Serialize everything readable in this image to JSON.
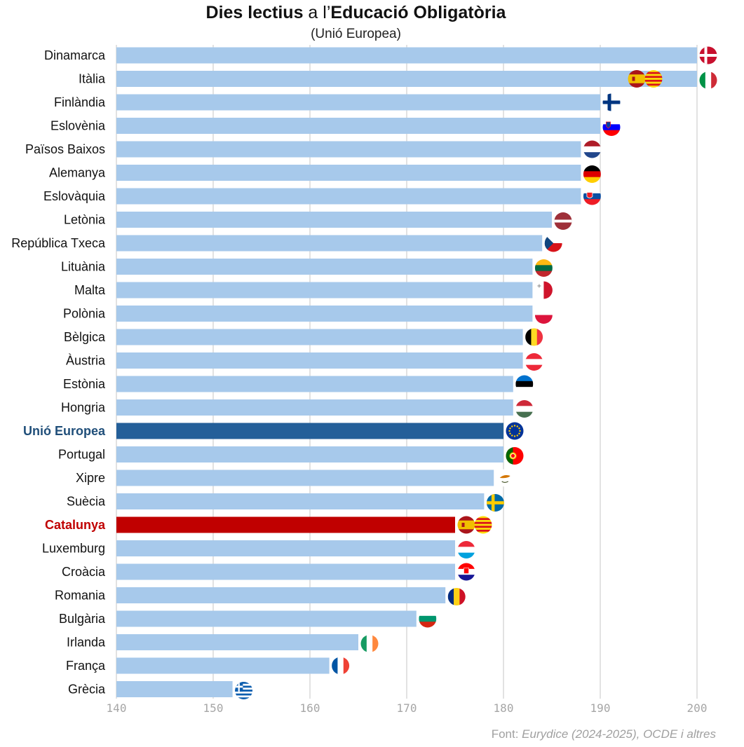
{
  "title": {
    "part1": "Dies lectius",
    "part2": " a l’",
    "part3": "Educació Obligatòria"
  },
  "subtitle": "(Unió Europea)",
  "source": {
    "prefix": "Font: ",
    "text": "Eurydice (2024-2025), OCDE i altres"
  },
  "colors": {
    "default_bar": "#a7c9eb",
    "eu_bar": "#245f99",
    "catalonia_bar": "#c00000",
    "eu_label": "#1f4e79",
    "catalonia_label": "#c00000",
    "grid": "#d9d9d9",
    "tick_label": "#a6a6a6"
  },
  "chart_data": {
    "type": "bar",
    "orientation": "horizontal",
    "xlim": [
      140,
      202
    ],
    "xticks": [
      140,
      150,
      160,
      170,
      180,
      190,
      200
    ],
    "grid": "vertical",
    "categories": [
      "Dinamarca",
      "Itàlia",
      "Finlàndia",
      "Eslovènia",
      "Països Baixos",
      "Alemanya",
      "Eslovàquia",
      "Letònia",
      "República Txeca",
      "Lituània",
      "Malta",
      "Polònia",
      "Bèlgica",
      "Àustria",
      "Estònia",
      "Hongria",
      "Unió Europea",
      "Portugal",
      "Xipre",
      "Suècia",
      "Catalunya",
      "Luxemburg",
      "Croàcia",
      "Romania",
      "Bulgària",
      "Irlanda",
      "França",
      "Grècia"
    ],
    "values": [
      200,
      200,
      190,
      190,
      188,
      188,
      188,
      185,
      184,
      183,
      183,
      183,
      182,
      182,
      181,
      181,
      180,
      180,
      179,
      178,
      175,
      175,
      175,
      174,
      171,
      165,
      162,
      152
    ],
    "highlight": {
      "Unió Europea": "eu",
      "Catalunya": "catalonia"
    },
    "flags": [
      "denmark-flag-icon",
      "italy-flag-icon",
      "finland-flag-icon",
      "slovenia-flag-icon",
      "netherlands-flag-icon",
      "germany-flag-icon",
      "slovakia-flag-icon",
      "latvia-flag-icon",
      "czech-flag-icon",
      "lithuania-flag-icon",
      "malta-flag-icon",
      "poland-flag-icon",
      "belgium-flag-icon",
      "austria-flag-icon",
      "estonia-flag-icon",
      "hungary-flag-icon",
      "eu-flag-icon",
      "portugal-flag-icon",
      "cyprus-flag-icon",
      "sweden-flag-icon",
      "spain-flag-icon",
      "luxembourg-flag-icon",
      "croatia-flag-icon",
      "romania-flag-icon",
      "bulgaria-flag-icon",
      "ireland-flag-icon",
      "france-flag-icon",
      "greece-flag-icon"
    ],
    "extra_flags": [
      {
        "category": "Itàlia",
        "icons": [
          "spain-flag-icon",
          "catalonia-flag-icon"
        ]
      },
      {
        "category": "Catalunya",
        "icons": [
          "catalonia-flag-icon"
        ]
      }
    ]
  }
}
